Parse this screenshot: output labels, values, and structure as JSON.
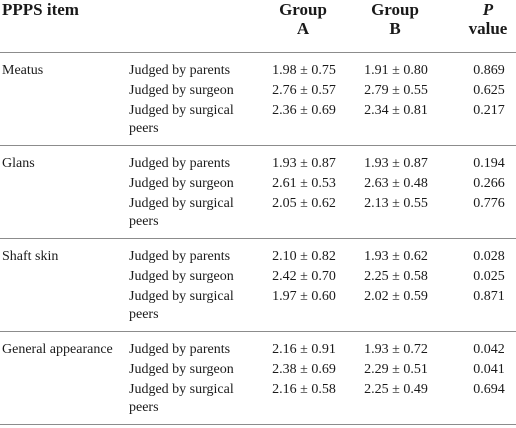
{
  "header": {
    "item": "PPPS item",
    "group_a": [
      "Group",
      "A"
    ],
    "group_b": [
      "Group",
      "B"
    ],
    "p_value": [
      "P",
      "value"
    ]
  },
  "groups": [
    {
      "label": "Meatus",
      "rows": [
        {
          "judge": "Judged by parents",
          "a": "1.98 ± 0.75",
          "b": "1.91 ± 0.80",
          "p": "0.869"
        },
        {
          "judge": "Judged by surgeon",
          "a": "2.76 ± 0.57",
          "b": "2.79 ± 0.55",
          "p": "0.625"
        },
        {
          "judge": "Judged by surgical peers",
          "a": "2.36 ± 0.69",
          "b": "2.34 ± 0.81",
          "p": "0.217"
        }
      ]
    },
    {
      "label": "Glans",
      "rows": [
        {
          "judge": "Judged by parents",
          "a": "1.93 ± 0.87",
          "b": "1.93 ± 0.87",
          "p": "0.194"
        },
        {
          "judge": "Judged by surgeon",
          "a": "2.61 ± 0.53",
          "b": "2.63 ± 0.48",
          "p": "0.266"
        },
        {
          "judge": "Judged by surgical peers",
          "a": "2.05 ± 0.62",
          "b": "2.13 ± 0.55",
          "p": "0.776"
        }
      ]
    },
    {
      "label": "Shaft skin",
      "rows": [
        {
          "judge": "Judged by parents",
          "a": "2.10 ± 0.82",
          "b": "1.93 ± 0.62",
          "p": "0.028"
        },
        {
          "judge": "Judged by surgeon",
          "a": "2.42 ± 0.70",
          "b": "2.25 ± 0.58",
          "p": "0.025"
        },
        {
          "judge": "Judged by surgical peers",
          "a": "1.97 ± 0.60",
          "b": "2.02 ± 0.59",
          "p": "0.871"
        }
      ]
    },
    {
      "label": "General appearance",
      "rows": [
        {
          "judge": "Judged by parents",
          "a": "2.16 ± 0.91",
          "b": "1.93 ± 0.72",
          "p": "0.042"
        },
        {
          "judge": "Judged by surgeon",
          "a": "2.38 ± 0.69",
          "b": "2.29 ± 0.51",
          "p": "0.041"
        },
        {
          "judge": "Judged by surgical peers",
          "a": "2.16 ± 0.58",
          "b": "2.25 ± 0.49",
          "p": "0.694"
        }
      ]
    }
  ]
}
